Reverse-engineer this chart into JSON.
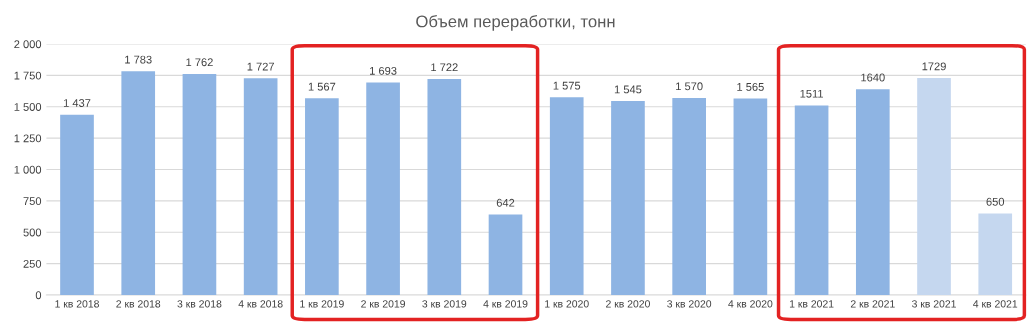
{
  "chart_data": {
    "type": "bar",
    "title": "Объем переработки, тонн",
    "categories": [
      "1 кв 2018",
      "2 кв 2018",
      "3 кв 2018",
      "4 кв 2018",
      "1 кв 2019",
      "2 кв 2019",
      "3 кв 2019",
      "4 кв 2019",
      "1 кв 2020",
      "2 кв 2020",
      "3 кв 2020",
      "4 кв 2020",
      "1 кв 2021",
      "2 кв 2021",
      "3 кв 2021",
      "4 кв 2021"
    ],
    "values": [
      1437,
      1783,
      1762,
      1727,
      1567,
      1693,
      1722,
      642,
      1575,
      1545,
      1570,
      1565,
      1511,
      1640,
      1729,
      650
    ],
    "colors": [
      "#8eb4e3",
      "#8eb4e3",
      "#8eb4e3",
      "#8eb4e3",
      "#8eb4e3",
      "#8eb4e3",
      "#8eb4e3",
      "#8eb4e3",
      "#8eb4e3",
      "#8eb4e3",
      "#8eb4e3",
      "#8eb4e3",
      "#8eb4e3",
      "#8eb4e3",
      "#c5d7ef",
      "#c5d7ef"
    ],
    "value_labels": [
      "1 437",
      "1 783",
      "1 762",
      "1 727",
      "1 567",
      "1 693",
      "1 722",
      "642",
      "1 575",
      "1 545",
      "1 570",
      "1 565",
      "1511",
      "1640",
      "1729",
      "650"
    ],
    "ylim": [
      0,
      2000
    ],
    "yticks": [
      0,
      {
        "value": 250,
        "label": "250"
      },
      {
        "value": 500,
        "label": "500"
      },
      {
        "value": 750,
        "label": "750"
      },
      {
        "value": 1000,
        "label": "1 000"
      },
      {
        "value": 1250,
        "label": "1 250"
      },
      {
        "value": 1500,
        "label": "1 500"
      },
      {
        "value": 1750,
        "label": "1 750"
      },
      {
        "value": 2000,
        "label": "2 000"
      }
    ],
    "grid": "y"
  }
}
